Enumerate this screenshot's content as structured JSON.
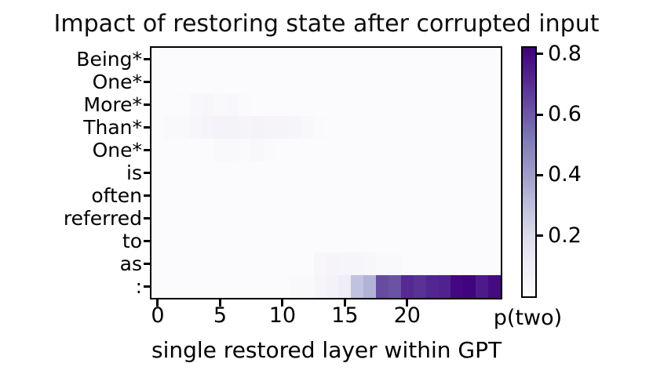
{
  "chart_data": {
    "type": "heatmap",
    "title": "Impact of restoring state after corrupted input",
    "xlabel": "single restored layer within GPT",
    "rows": [
      "Being*",
      "One*",
      "More*",
      "Than*",
      "One*",
      "is",
      "often",
      "referred",
      "to",
      "as",
      ":"
    ],
    "n_layers": 28,
    "x_ticks": [
      0,
      5,
      10,
      15,
      20
    ],
    "colorbar": {
      "label": "p(two)",
      "ticks": [
        0.2,
        0.4,
        0.6,
        0.8
      ],
      "vmin": 0.0,
      "vmax": 0.82
    },
    "colormap": {
      "name": "Purples",
      "anchors": [
        "#fcfbfd",
        "#efedf5",
        "#dadaeb",
        "#bcbddc",
        "#9e9ac8",
        "#807dba",
        "#6a51a3",
        "#54278f",
        "#3f007d"
      ]
    },
    "grid": false,
    "values": [
      [
        0.01,
        0.01,
        0.01,
        0.01,
        0.01,
        0.01,
        0.01,
        0.01,
        0.01,
        0.01,
        0.01,
        0.01,
        0.01,
        0.01,
        0.01,
        0.01,
        0.01,
        0.01,
        0.01,
        0.01,
        0.01,
        0.01,
        0.01,
        0.01,
        0.01,
        0.01,
        0.01,
        0.01
      ],
      [
        0.01,
        0.01,
        0.01,
        0.01,
        0.01,
        0.01,
        0.01,
        0.01,
        0.01,
        0.01,
        0.01,
        0.01,
        0.01,
        0.01,
        0.01,
        0.01,
        0.01,
        0.01,
        0.01,
        0.01,
        0.01,
        0.01,
        0.01,
        0.01,
        0.01,
        0.01,
        0.01,
        0.01
      ],
      [
        0.01,
        0.01,
        0.015,
        0.03,
        0.035,
        0.02,
        0.03,
        0.015,
        0.01,
        0.01,
        0.01,
        0.01,
        0.01,
        0.01,
        0.01,
        0.01,
        0.01,
        0.01,
        0.01,
        0.01,
        0.01,
        0.01,
        0.01,
        0.01,
        0.01,
        0.01,
        0.01,
        0.01
      ],
      [
        0.01,
        0.02,
        0.025,
        0.04,
        0.05,
        0.055,
        0.06,
        0.05,
        0.055,
        0.05,
        0.05,
        0.045,
        0.03,
        0.015,
        0.01,
        0.01,
        0.01,
        0.01,
        0.01,
        0.01,
        0.01,
        0.01,
        0.01,
        0.01,
        0.01,
        0.01,
        0.01,
        0.01
      ],
      [
        0.01,
        0.01,
        0.01,
        0.01,
        0.01,
        0.025,
        0.02,
        0.015,
        0.03,
        0.015,
        0.01,
        0.01,
        0.01,
        0.01,
        0.01,
        0.01,
        0.01,
        0.01,
        0.01,
        0.01,
        0.01,
        0.01,
        0.01,
        0.01,
        0.01,
        0.01,
        0.01,
        0.01
      ],
      [
        0.01,
        0.01,
        0.01,
        0.01,
        0.01,
        0.01,
        0.01,
        0.01,
        0.01,
        0.01,
        0.01,
        0.01,
        0.01,
        0.01,
        0.01,
        0.01,
        0.01,
        0.01,
        0.01,
        0.01,
        0.01,
        0.01,
        0.01,
        0.01,
        0.01,
        0.01,
        0.01,
        0.01
      ],
      [
        0.01,
        0.01,
        0.01,
        0.01,
        0.01,
        0.01,
        0.01,
        0.01,
        0.01,
        0.01,
        0.01,
        0.01,
        0.01,
        0.01,
        0.01,
        0.01,
        0.01,
        0.01,
        0.01,
        0.01,
        0.01,
        0.01,
        0.01,
        0.01,
        0.01,
        0.01,
        0.01,
        0.01
      ],
      [
        0.01,
        0.01,
        0.01,
        0.01,
        0.01,
        0.01,
        0.01,
        0.01,
        0.01,
        0.01,
        0.01,
        0.01,
        0.01,
        0.01,
        0.01,
        0.01,
        0.01,
        0.01,
        0.01,
        0.01,
        0.01,
        0.01,
        0.01,
        0.01,
        0.01,
        0.01,
        0.01,
        0.01
      ],
      [
        0.01,
        0.01,
        0.01,
        0.01,
        0.01,
        0.01,
        0.01,
        0.01,
        0.01,
        0.01,
        0.01,
        0.01,
        0.01,
        0.01,
        0.01,
        0.01,
        0.01,
        0.01,
        0.01,
        0.01,
        0.01,
        0.01,
        0.01,
        0.01,
        0.01,
        0.01,
        0.01,
        0.01
      ],
      [
        0.01,
        0.01,
        0.01,
        0.01,
        0.01,
        0.01,
        0.01,
        0.01,
        0.01,
        0.01,
        0.01,
        0.01,
        0.01,
        0.035,
        0.05,
        0.045,
        0.045,
        0.04,
        0.025,
        0.02,
        0.01,
        0.01,
        0.01,
        0.01,
        0.01,
        0.01,
        0.01,
        0.01
      ],
      [
        0.01,
        0.01,
        0.01,
        0.01,
        0.01,
        0.01,
        0.01,
        0.01,
        0.01,
        0.01,
        0.01,
        0.02,
        0.02,
        0.045,
        0.065,
        0.1,
        0.29,
        0.34,
        0.63,
        0.61,
        0.71,
        0.69,
        0.72,
        0.73,
        0.8,
        0.81,
        0.75,
        0.79
      ]
    ]
  }
}
